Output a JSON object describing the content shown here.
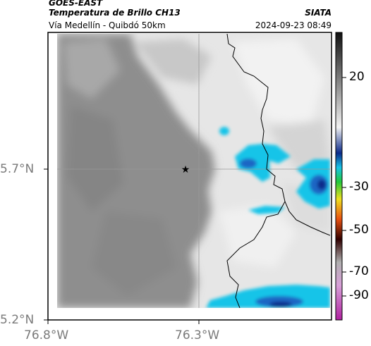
{
  "header": {
    "satellite": "GOES-EAST",
    "product": "Temperatura de Brillo CH13",
    "region": "Vía Medellín - Quibdó 50km",
    "source": "SIATA",
    "datetime": "2024-09-23 08:49"
  },
  "axes": {
    "lat_labels": [
      "5.7°N",
      "5.2°N"
    ],
    "lon_labels": [
      "76.8°W",
      "76.3°W"
    ]
  },
  "colorbar": {
    "tick_labels": [
      "20",
      "-30",
      "-50",
      "-70",
      "-90"
    ]
  },
  "colors": {
    "cloud_cyan": "#18c4e8",
    "cloud_blue": "#1c66c4",
    "cloud_dark_blue": "#0a2a8a",
    "border_line": "#000000"
  },
  "markers": {
    "star_icon": "star-icon"
  }
}
